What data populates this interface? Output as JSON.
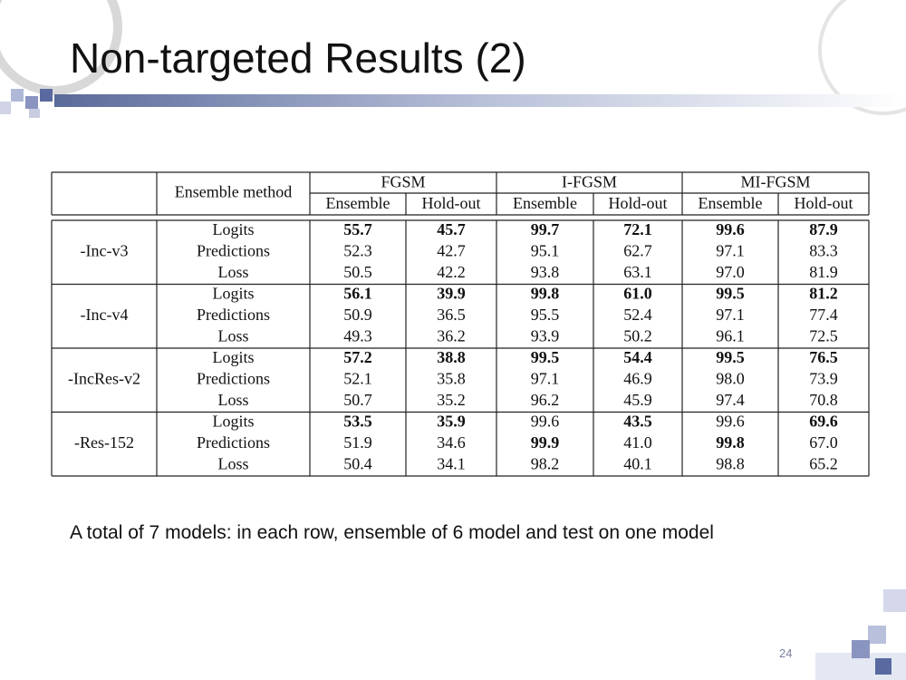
{
  "title": "Non-targeted Results (2)",
  "table": {
    "header": {
      "method": "Ensemble method",
      "groups": [
        {
          "name": "FGSM",
          "columns": [
            "Ensemble",
            "Hold-out"
          ]
        },
        {
          "name": "I-FGSM",
          "columns": [
            "Ensemble",
            "Hold-out"
          ]
        },
        {
          "name": "MI-FGSM",
          "columns": [
            "Ensemble",
            "Hold-out"
          ]
        }
      ]
    },
    "groups": [
      {
        "name": "-Inc-v3",
        "rows": [
          {
            "method": "Logits",
            "values": [
              "55.7",
              "45.7",
              "99.7",
              "72.1",
              "99.6",
              "87.9"
            ],
            "bold": [
              true,
              true,
              true,
              true,
              true,
              true
            ]
          },
          {
            "method": "Predictions",
            "values": [
              "52.3",
              "42.7",
              "95.1",
              "62.7",
              "97.1",
              "83.3"
            ],
            "bold": [
              false,
              false,
              false,
              false,
              false,
              false
            ]
          },
          {
            "method": "Loss",
            "values": [
              "50.5",
              "42.2",
              "93.8",
              "63.1",
              "97.0",
              "81.9"
            ],
            "bold": [
              false,
              false,
              false,
              false,
              false,
              false
            ]
          }
        ]
      },
      {
        "name": "-Inc-v4",
        "rows": [
          {
            "method": "Logits",
            "values": [
              "56.1",
              "39.9",
              "99.8",
              "61.0",
              "99.5",
              "81.2"
            ],
            "bold": [
              true,
              true,
              true,
              true,
              true,
              true
            ]
          },
          {
            "method": "Predictions",
            "values": [
              "50.9",
              "36.5",
              "95.5",
              "52.4",
              "97.1",
              "77.4"
            ],
            "bold": [
              false,
              false,
              false,
              false,
              false,
              false
            ]
          },
          {
            "method": "Loss",
            "values": [
              "49.3",
              "36.2",
              "93.9",
              "50.2",
              "96.1",
              "72.5"
            ],
            "bold": [
              false,
              false,
              false,
              false,
              false,
              false
            ]
          }
        ]
      },
      {
        "name": "-IncRes-v2",
        "rows": [
          {
            "method": "Logits",
            "values": [
              "57.2",
              "38.8",
              "99.5",
              "54.4",
              "99.5",
              "76.5"
            ],
            "bold": [
              true,
              true,
              true,
              true,
              true,
              true
            ]
          },
          {
            "method": "Predictions",
            "values": [
              "52.1",
              "35.8",
              "97.1",
              "46.9",
              "98.0",
              "73.9"
            ],
            "bold": [
              false,
              false,
              false,
              false,
              false,
              false
            ]
          },
          {
            "method": "Loss",
            "values": [
              "50.7",
              "35.2",
              "96.2",
              "45.9",
              "97.4",
              "70.8"
            ],
            "bold": [
              false,
              false,
              false,
              false,
              false,
              false
            ]
          }
        ]
      },
      {
        "name": "-Res-152",
        "rows": [
          {
            "method": "Logits",
            "values": [
              "53.5",
              "35.9",
              "99.6",
              "43.5",
              "99.6",
              "69.6"
            ],
            "bold": [
              true,
              true,
              false,
              true,
              false,
              true
            ]
          },
          {
            "method": "Predictions",
            "values": [
              "51.9",
              "34.6",
              "99.9",
              "41.0",
              "99.8",
              "67.0"
            ],
            "bold": [
              false,
              false,
              true,
              false,
              true,
              false
            ]
          },
          {
            "method": "Loss",
            "values": [
              "50.4",
              "34.1",
              "98.2",
              "40.1",
              "98.8",
              "65.2"
            ],
            "bold": [
              false,
              false,
              false,
              false,
              false,
              false
            ]
          }
        ]
      }
    ]
  },
  "caption": "A total of 7 models: in each row, ensemble of 6 model and test on one model",
  "page_number": "24"
}
